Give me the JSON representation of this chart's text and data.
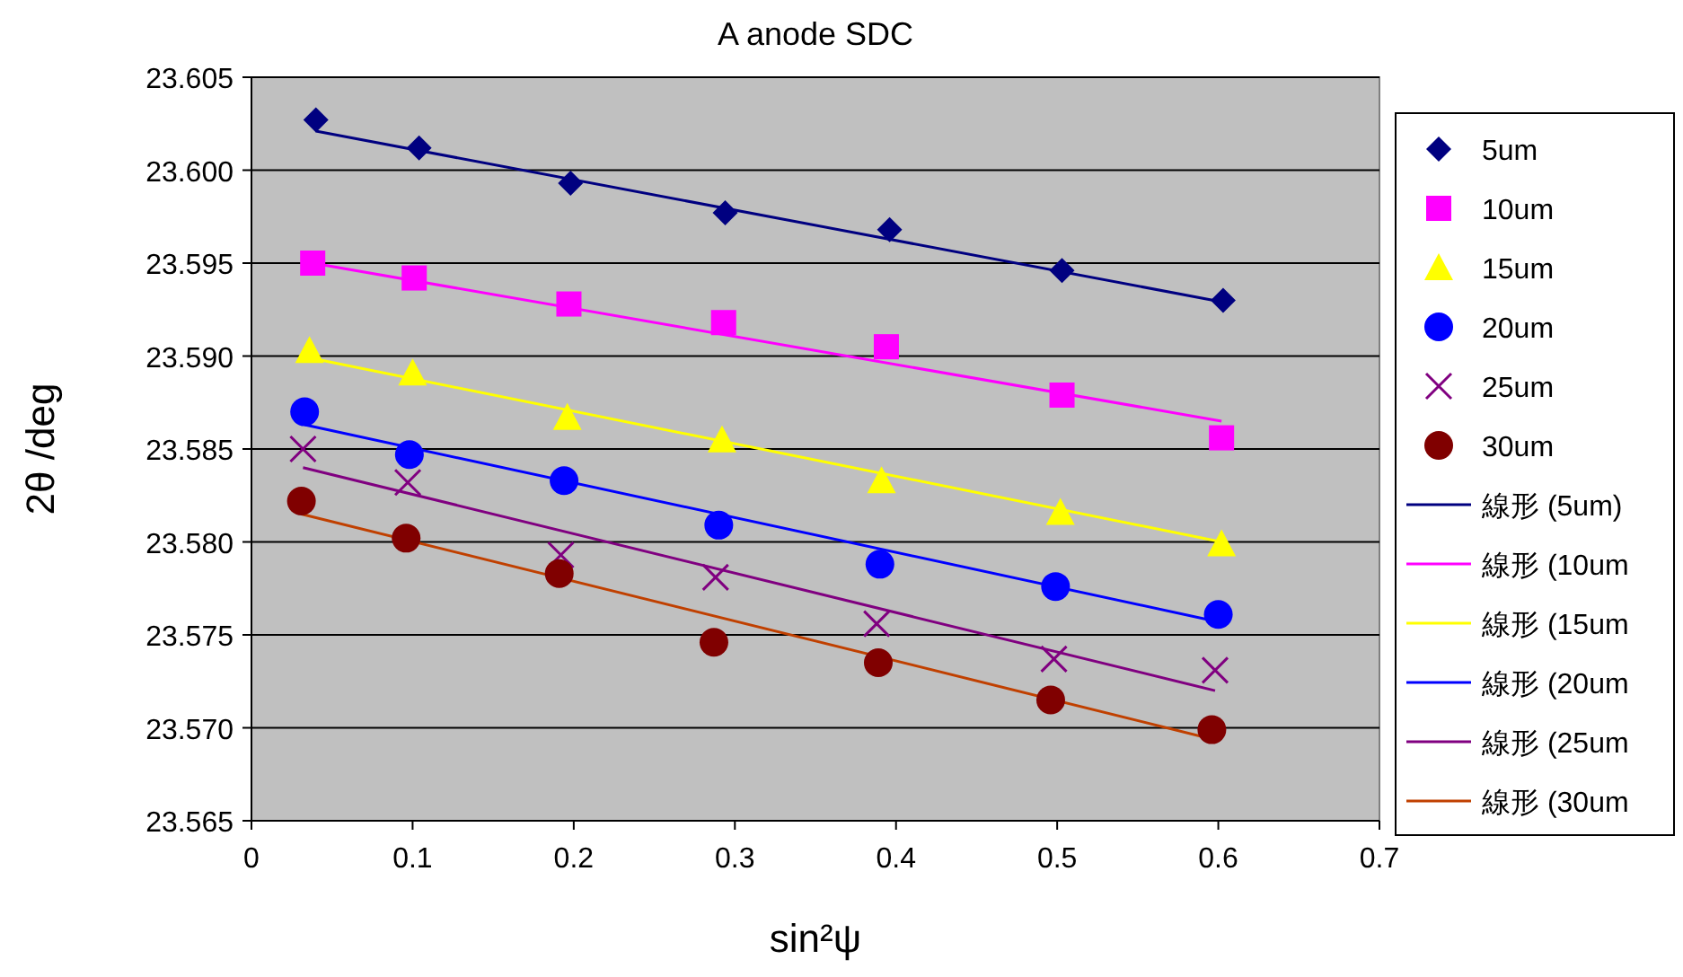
{
  "chart_data": {
    "type": "scatter",
    "title": "A anode SDC",
    "xlabel": "sin²ψ",
    "ylabel": "2θ /deg",
    "xlim": [
      0,
      0.7
    ],
    "xticks": [
      0,
      0.1,
      0.2,
      0.3,
      0.4,
      0.5,
      0.6,
      0.7
    ],
    "ylim": [
      23.565,
      23.605
    ],
    "yticks": [
      {
        "value": 23.565,
        "label": "23.565"
      },
      {
        "value": 23.57,
        "label": "23.570"
      },
      {
        "value": 23.575,
        "label": "23.575"
      },
      {
        "value": 23.58,
        "label": "23.580"
      },
      {
        "value": 23.585,
        "label": "23.585"
      },
      {
        "value": 23.59,
        "label": "23.590"
      },
      {
        "value": 23.595,
        "label": "23.595"
      },
      {
        "value": 23.6,
        "label": "23.600"
      },
      {
        "value": 23.605,
        "label": "23.605"
      }
    ],
    "grid": "y",
    "legend": "right",
    "series": [
      {
        "name": "5um",
        "type": "scatter",
        "marker": "diamond",
        "color": "#000080",
        "x": [
          0.04,
          0.104,
          0.198,
          0.294,
          0.396,
          0.503,
          0.603
        ],
        "values": [
          23.6027,
          23.6012,
          23.5993,
          23.5977,
          23.5968,
          23.5946,
          23.593
        ]
      },
      {
        "name": "10um",
        "type": "scatter",
        "marker": "square",
        "color": "#ff00ff",
        "x": [
          0.038,
          0.101,
          0.197,
          0.293,
          0.394,
          0.503,
          0.602
        ],
        "values": [
          23.595,
          23.5942,
          23.5928,
          23.5918,
          23.5905,
          23.5879,
          23.5856
        ]
      },
      {
        "name": "15um",
        "type": "scatter",
        "marker": "triangle",
        "color": "#ffff00",
        "x": [
          0.036,
          0.1,
          0.196,
          0.292,
          0.391,
          0.502,
          0.602
        ],
        "values": [
          23.5903,
          23.5891,
          23.5867,
          23.5855,
          23.5833,
          23.5816,
          23.5799
        ]
      },
      {
        "name": "20um",
        "type": "scatter",
        "marker": "circle",
        "color": "#0000ff",
        "x": [
          0.033,
          0.098,
          0.194,
          0.29,
          0.39,
          0.499,
          0.6
        ],
        "values": [
          23.587,
          23.5847,
          23.5833,
          23.5809,
          23.5788,
          23.5776,
          23.5761
        ]
      },
      {
        "name": "25um",
        "type": "scatter",
        "marker": "cross",
        "color": "#800080",
        "x": [
          0.032,
          0.097,
          0.192,
          0.288,
          0.388,
          0.498,
          0.598
        ],
        "values": [
          23.585,
          23.5832,
          23.5793,
          23.5781,
          23.5756,
          23.5737,
          23.5731
        ]
      },
      {
        "name": "30um",
        "type": "scatter",
        "marker": "circle",
        "color": "#800000",
        "x": [
          0.031,
          0.096,
          0.191,
          0.287,
          0.389,
          0.496,
          0.596
        ],
        "values": [
          23.5822,
          23.5802,
          23.5783,
          23.5746,
          23.5735,
          23.5715,
          23.5699
        ]
      },
      {
        "name": "線形 (5um)",
        "type": "line",
        "color": "#000080",
        "x": [
          0.04,
          0.603
        ],
        "values": [
          23.6021,
          23.5929
        ]
      },
      {
        "name": "線形 (10um",
        "type": "line",
        "color": "#ff00ff",
        "x": [
          0.038,
          0.602
        ],
        "values": [
          23.595,
          23.5865
        ]
      },
      {
        "name": "線形 (15um",
        "type": "line",
        "color": "#ffff00",
        "x": [
          0.036,
          0.602
        ],
        "values": [
          23.5899,
          23.58
        ]
      },
      {
        "name": "線形 (20um",
        "type": "line",
        "color": "#0000ff",
        "x": [
          0.033,
          0.6
        ],
        "values": [
          23.5863,
          23.5757
        ]
      },
      {
        "name": "線形 (25um",
        "type": "line",
        "color": "#800080",
        "x": [
          0.032,
          0.598
        ],
        "values": [
          23.584,
          23.572
        ]
      },
      {
        "name": "線形 (30um",
        "type": "line",
        "color": "#c04000",
        "x": [
          0.031,
          0.596
        ],
        "values": [
          23.5815,
          23.5694
        ]
      }
    ]
  }
}
